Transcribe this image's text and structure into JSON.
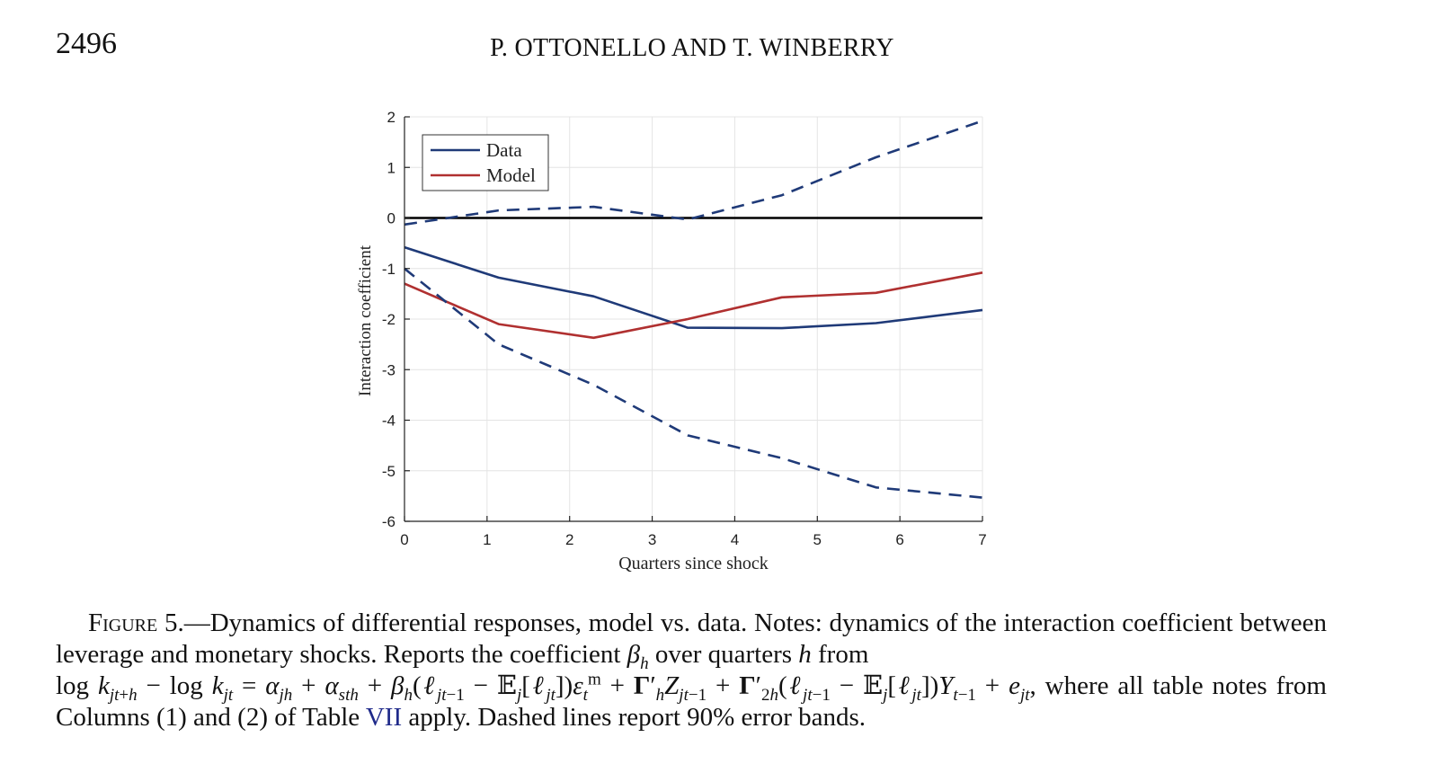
{
  "header": {
    "page_number": "2496",
    "authors": "P. OTTONELLO AND T. WINBERRY"
  },
  "chart_data": {
    "type": "line",
    "xlabel": "Quarters since shock",
    "ylabel": "Interaction coefficient",
    "xlim": [
      0,
      7
    ],
    "ylim": [
      -6,
      2
    ],
    "xticks": [
      0,
      1,
      2,
      3,
      4,
      5,
      6,
      7
    ],
    "yticks": [
      2,
      1,
      0,
      -1,
      -2,
      -3,
      -4,
      -5,
      -6
    ],
    "xtick_labels": [
      "0",
      "1",
      "2",
      "3",
      "4",
      "5",
      "6",
      "7"
    ],
    "ytick_labels": [
      "2",
      "1",
      "0",
      "-1",
      "-2",
      "-3",
      "-4",
      "-5",
      "-6"
    ],
    "grid": true,
    "legend": "top-left",
    "legend_entries": [
      "Data",
      "Model"
    ],
    "zero_line": 0,
    "series": [
      {
        "name": "Data",
        "style": "solid",
        "color": "#1f3a78",
        "x": [
          0,
          1.14,
          2.29,
          3.43,
          4.57,
          5.71,
          7
        ],
        "y": [
          -0.58,
          -1.18,
          -1.55,
          -2.17,
          -2.18,
          -2.08,
          -1.82
        ]
      },
      {
        "name": "Model",
        "style": "solid",
        "color": "#b03030",
        "x": [
          0,
          1.14,
          2.29,
          3.43,
          4.57,
          5.71,
          7
        ],
        "y": [
          -1.3,
          -2.1,
          -2.37,
          -2.0,
          -1.57,
          -1.48,
          -1.08
        ]
      },
      {
        "style": "dashed",
        "color": "#1f3a78",
        "x": [
          0,
          1.14,
          2.29,
          3.43,
          4.57,
          5.71,
          7
        ],
        "y": [
          -0.13,
          0.15,
          0.22,
          -0.03,
          0.45,
          1.2,
          1.92
        ]
      },
      {
        "style": "dashed",
        "color": "#1f3a78",
        "x": [
          0,
          1.14,
          2.29,
          3.43,
          4.57,
          5.71,
          7
        ],
        "y": [
          -1.0,
          -2.5,
          -3.3,
          -4.3,
          -4.75,
          -5.33,
          -5.53
        ]
      }
    ]
  },
  "caption": {
    "label": "Figure 5.",
    "text_1": "—Dynamics of differential responses, model vs. data. Notes: dynamics of the interaction coefficient between leverage and monetary shocks. Reports the coefficient ",
    "text_2": " over quarters ",
    "text_3": " from",
    "text_4": ", where all table notes from Columns (1) and (2) of Table ",
    "table_ref": "VII",
    "text_5": " apply. Dashed lines report 90% error bands."
  }
}
